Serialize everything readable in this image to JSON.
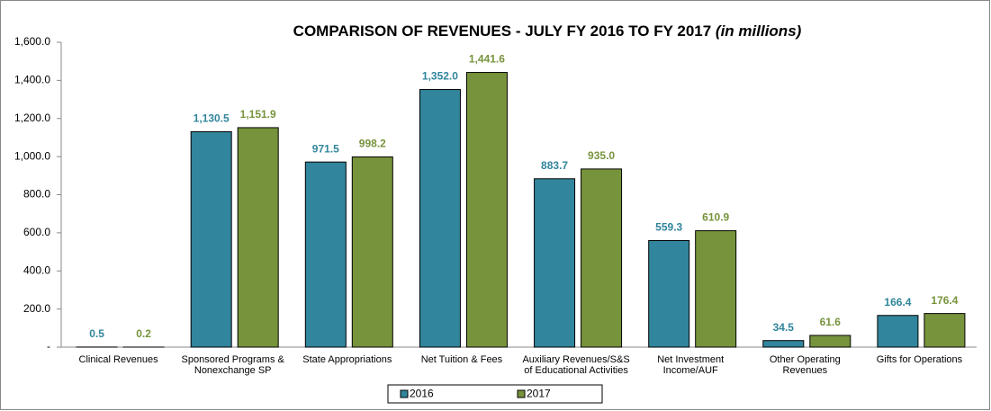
{
  "chart_data": {
    "type": "bar",
    "title": "COMPARISON OF REVENUES - JULY FY 2016 TO FY 2017",
    "subtitle": "(in millions)",
    "categories": [
      "Clinical Revenues",
      "Sponsored Programs &\nNonexchange SP",
      "State Appropriations",
      "Net Tuition & Fees",
      "Auxiliary Revenues/S&S\nof Educational Activities",
      "Net Investment\nIncome/AUF",
      "Other Operating\nRevenues",
      "Gifts for Operations"
    ],
    "series": [
      {
        "name": "2016",
        "color": "#31859c",
        "values": [
          0.5,
          1130.5,
          971.5,
          1352.0,
          883.7,
          559.3,
          34.5,
          166.4
        ],
        "value_labels": [
          "0.5",
          "1,130.5",
          "971.5",
          "1,352.0",
          "883.7",
          "559.3",
          "34.5",
          "166.4"
        ]
      },
      {
        "name": "2017",
        "color": "#77933c",
        "values": [
          0.2,
          1151.9,
          998.2,
          1441.6,
          935.0,
          610.9,
          61.6,
          176.4
        ],
        "value_labels": [
          "0.2",
          "1,151.9",
          "998.2",
          "1,441.6",
          "935.0",
          "610.9",
          "61.6",
          "176.4"
        ]
      }
    ],
    "ylim": [
      0,
      1600
    ],
    "yticks": [
      {
        "value": 0,
        "label": "-"
      },
      {
        "value": 200,
        "label": "200.0"
      },
      {
        "value": 400,
        "label": "400.0"
      },
      {
        "value": 600,
        "label": "600.0"
      },
      {
        "value": 800,
        "label": "800.0"
      },
      {
        "value": 1000,
        "label": "1,000.0"
      },
      {
        "value": 1200,
        "label": "1,200.0"
      },
      {
        "value": 1400,
        "label": "1,400.0"
      },
      {
        "value": 1600,
        "label": "1,600.0"
      }
    ],
    "legend": "bottom",
    "grid": false
  }
}
